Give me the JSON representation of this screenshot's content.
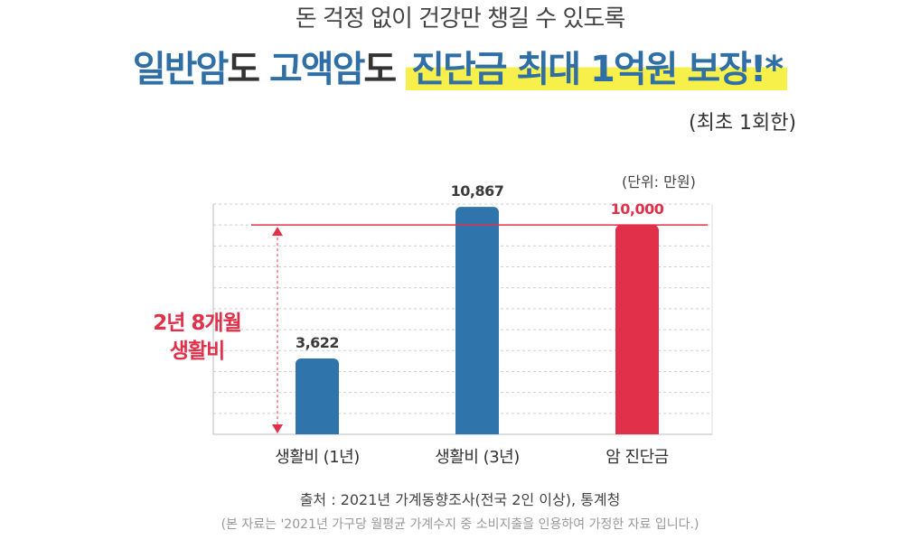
{
  "header": {
    "subtitle": "돈 걱정 없이 건강만 챙길 수 있도록",
    "headline_part1": "일반암",
    "headline_part2": "도 ",
    "headline_part3": "고액암",
    "headline_part4": "도 ",
    "headline_highlight": "진단금 최대 1억원 보장!*",
    "limit_note": "(최초 1회한)"
  },
  "unit_label": "(단위: 만원)",
  "annotation": {
    "line1": "2년 8개월",
    "line2": "생활비"
  },
  "colors": {
    "blue": "#2f74ab",
    "red": "#e0304a",
    "highlight": "#f7f04a"
  },
  "chart_data": {
    "type": "bar",
    "categories": [
      "생활비 (1년)",
      "생활비 (3년)",
      "암 진단금"
    ],
    "values": [
      3622,
      10867,
      10000
    ],
    "value_labels": [
      "3,622",
      "10,867",
      "10,000"
    ],
    "bar_colors": [
      "#2f74ab",
      "#2f74ab",
      "#e0304a"
    ],
    "reference_value": 10000,
    "ylim": [
      0,
      11000
    ],
    "grid": true
  },
  "footer": {
    "source": "출처 : 2021년 가계동향조사(전국 2인 이상), 통계청",
    "note": "(본 자료는 '2021년 가구당 월평균 가계수지 중 소비지출을 인용하여 가정한 자료 입니다.)"
  }
}
